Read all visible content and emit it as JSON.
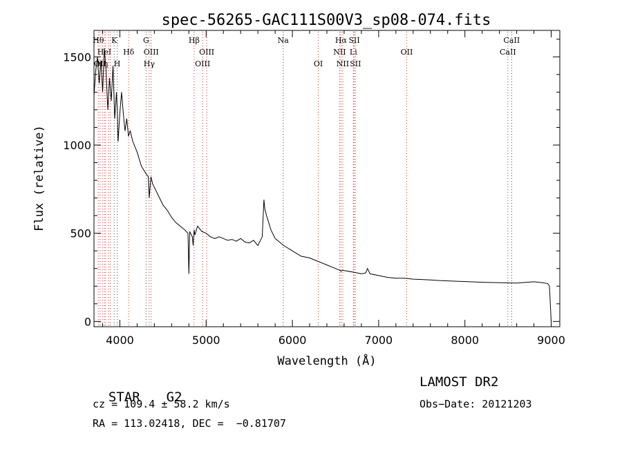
{
  "chart_data": {
    "type": "line",
    "title": "spec-56265-GAC111S00V3_sp08-074.fits",
    "xlabel": "Wavelength (Å)",
    "ylabel": "Flux (relative)",
    "xlim": [
      3700,
      9100
    ],
    "ylim": [
      -30,
      1650
    ],
    "xticks": [
      4000,
      5000,
      6000,
      7000,
      8000,
      9000
    ],
    "yticks": [
      0,
      500,
      1000,
      1500
    ],
    "grid": false,
    "series": [
      {
        "x": [
          3700,
          3720,
          3740,
          3760,
          3780,
          3800,
          3820,
          3840,
          3860,
          3880,
          3900,
          3920,
          3940,
          3960,
          3970,
          3980,
          4000,
          4020,
          4040,
          4060,
          4080,
          4100,
          4120,
          4150,
          4200,
          4250,
          4300,
          4330,
          4340,
          4360,
          4380,
          4400,
          4450,
          4500,
          4550,
          4600,
          4650,
          4700,
          4750,
          4790,
          4800,
          4810,
          4820,
          4840,
          4850,
          4861,
          4870,
          4900,
          4950,
          5000,
          5050,
          5100,
          5150,
          5200,
          5250,
          5300,
          5350,
          5400,
          5450,
          5500,
          5550,
          5600,
          5650,
          5670,
          5680,
          5690,
          5700,
          5720,
          5750,
          5800,
          5850,
          5900,
          6000,
          6100,
          6200,
          6300,
          6400,
          6500,
          6550,
          6563,
          6580,
          6700,
          6800,
          6850,
          6870,
          6900,
          7000,
          7100,
          7200,
          7300,
          7400,
          7500,
          7600,
          7700,
          7800,
          7900,
          8000,
          8200,
          8400,
          8600,
          8800,
          8900,
          8960,
          8980,
          8990,
          9000
        ],
        "y": [
          1280,
          1420,
          1500,
          1350,
          1480,
          1300,
          1550,
          1420,
          1200,
          1380,
          1250,
          1450,
          1150,
          1300,
          1200,
          1020,
          1180,
          1300,
          1180,
          1080,
          1150,
          1050,
          1080,
          1020,
          960,
          880,
          840,
          820,
          700,
          820,
          780,
          760,
          710,
          660,
          630,
          590,
          560,
          540,
          520,
          500,
          270,
          510,
          500,
          480,
          430,
          520,
          490,
          540,
          510,
          500,
          480,
          470,
          480,
          470,
          460,
          465,
          455,
          470,
          450,
          445,
          460,
          430,
          480,
          690,
          640,
          620,
          600,
          570,
          520,
          470,
          450,
          430,
          400,
          370,
          360,
          340,
          320,
          300,
          290,
          285,
          290,
          280,
          270,
          275,
          300,
          270,
          260,
          250,
          245,
          245,
          240,
          238,
          235,
          232,
          230,
          228,
          226,
          222,
          220,
          218,
          225,
          220,
          215,
          200,
          100,
          0
        ]
      }
    ],
    "lines": [
      {
        "wave": 3750,
        "label": "Hθ",
        "row": 1,
        "color": "#d22"
      },
      {
        "wave": 3770,
        "label": "OII",
        "row": 3,
        "color": "#d22"
      },
      {
        "wave": 3797,
        "label": "Hη",
        "row": 3,
        "color": "#d22"
      },
      {
        "wave": 3820,
        "label": "HeI",
        "row": 2,
        "color": "#d22"
      },
      {
        "wave": 3835,
        "label": "",
        "row": 0,
        "color": "#d22"
      },
      {
        "wave": 3869,
        "label": "",
        "row": 0,
        "color": "#d22"
      },
      {
        "wave": 3889,
        "label": "",
        "row": 0,
        "color": "#d22"
      },
      {
        "wave": 3934,
        "label": "K",
        "row": 1,
        "color": "#444"
      },
      {
        "wave": 3969,
        "label": "H",
        "row": 3,
        "color": "#444"
      },
      {
        "wave": 4102,
        "label": "Hδ",
        "row": 2,
        "color": "#d22"
      },
      {
        "wave": 4304,
        "label": "G",
        "row": 1,
        "color": "#444"
      },
      {
        "wave": 4340,
        "label": "Hγ",
        "row": 3,
        "color": "#d22"
      },
      {
        "wave": 4363,
        "label": "OIII",
        "row": 2,
        "color": "#d22"
      },
      {
        "wave": 4861,
        "label": "Hβ",
        "row": 1,
        "color": "#d22"
      },
      {
        "wave": 4959,
        "label": "OIII",
        "row": 3,
        "color": "#d22"
      },
      {
        "wave": 5007,
        "label": "OIII",
        "row": 2,
        "color": "#d22"
      },
      {
        "wave": 5893,
        "label": "Na",
        "row": 1,
        "color": "#444"
      },
      {
        "wave": 6300,
        "label": "OI",
        "row": 3,
        "color": "#d22"
      },
      {
        "wave": 6548,
        "label": "NII",
        "row": 2,
        "color": "#d22"
      },
      {
        "wave": 6563,
        "label": "Hα",
        "row": 1,
        "color": "#d22"
      },
      {
        "wave": 6584,
        "label": "NII",
        "row": 3,
        "color": "#d22"
      },
      {
        "wave": 6707,
        "label": "Li",
        "row": 2,
        "color": "#444"
      },
      {
        "wave": 6717,
        "label": "SII",
        "row": 1,
        "color": "#d22"
      },
      {
        "wave": 6731,
        "label": "SII",
        "row": 3,
        "color": "#d22"
      },
      {
        "wave": 7325,
        "label": "OII",
        "row": 2,
        "color": "#d22"
      },
      {
        "wave": 8498,
        "label": "CaII",
        "row": 2,
        "color": "#444"
      },
      {
        "wave": 8542,
        "label": "CaII",
        "row": 1,
        "color": "#444"
      }
    ]
  },
  "info": {
    "class": "STAR",
    "subclass": "G2",
    "cz": "cz = 109.4 ± 58.2 km/s",
    "coords": "RA = 113.02418, DEC =  −0.81707",
    "survey": "LAMOST DR2",
    "obs_date": "Obs−Date: 20121203"
  }
}
